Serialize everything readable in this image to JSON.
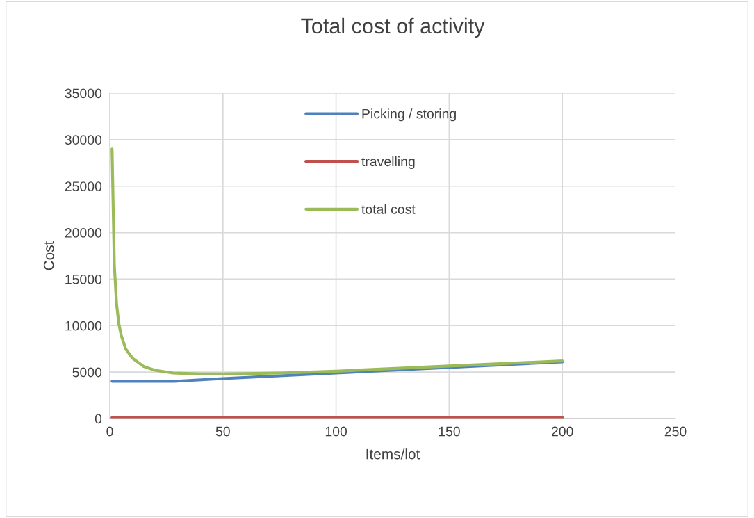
{
  "chart_data": {
    "type": "line",
    "title": "Total cost of activity",
    "xlabel": "Items/lot",
    "ylabel": "Cost",
    "xlim": [
      0,
      250
    ],
    "xticks": [
      0,
      50,
      100,
      150,
      200,
      250
    ],
    "ylim": [
      0,
      35000
    ],
    "yticks": [
      0,
      5000,
      10000,
      15000,
      20000,
      25000,
      30000,
      35000
    ],
    "grid": true,
    "legend": "top",
    "marker": "none",
    "line_style": "solid",
    "series": [
      {
        "name": "Picking / storing",
        "color": "#4f81bd",
        "x": [
          1,
          28,
          50,
          100,
          150,
          200
        ],
        "values": [
          4000,
          4000,
          4300,
          4900,
          5500,
          6100
        ]
      },
      {
        "name": "travelling",
        "color": "#c0504d",
        "x": [
          1,
          200
        ],
        "values": [
          100,
          100
        ]
      },
      {
        "name": "total cost",
        "color": "#9bbb59",
        "x": [
          1,
          2,
          3,
          4,
          5,
          7,
          10,
          15,
          20,
          28,
          40,
          50,
          75,
          100,
          150,
          200
        ],
        "values": [
          29000,
          16500,
          12300,
          10200,
          9000,
          7500,
          6500,
          5600,
          5200,
          4900,
          4800,
          4800,
          4900,
          5100,
          5650,
          6200
        ]
      }
    ]
  }
}
